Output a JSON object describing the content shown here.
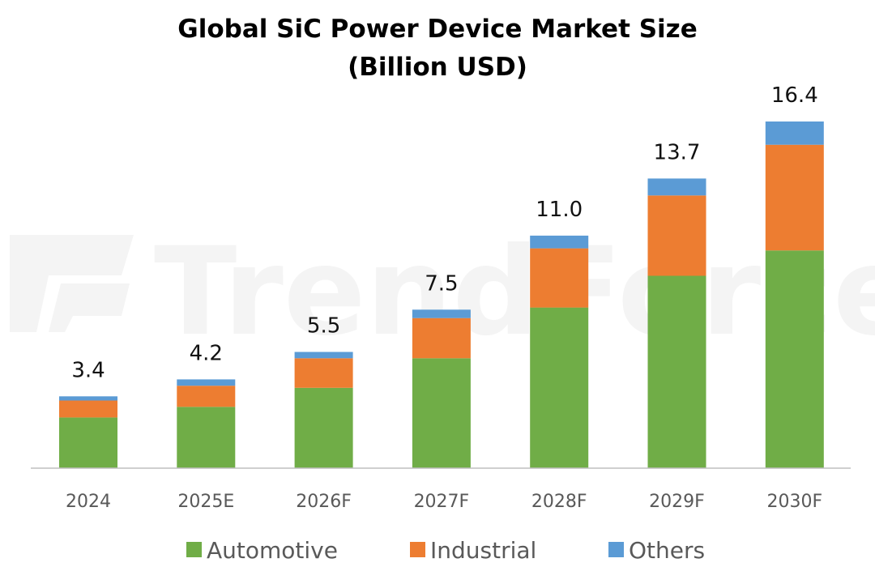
{
  "chart_data": {
    "type": "bar",
    "stacked": true,
    "title": [
      "Global SiC Power Device Market Size",
      "(Billion USD)"
    ],
    "watermark": "TrendForce",
    "categories": [
      "2024",
      "2025E",
      "2026F",
      "2027F",
      "2028F",
      "2029F",
      "2030F"
    ],
    "series": [
      {
        "name": "Automotive",
        "color": "#70ad47",
        "values": [
          2.4,
          2.9,
          3.8,
          5.2,
          7.6,
          9.1,
          10.3
        ]
      },
      {
        "name": "Industrial",
        "color": "#ed7d31",
        "values": [
          0.8,
          1.0,
          1.4,
          1.9,
          2.8,
          3.8,
          5.0
        ]
      },
      {
        "name": "Others",
        "color": "#5b9bd5",
        "values": [
          0.2,
          0.3,
          0.3,
          0.4,
          0.6,
          0.8,
          1.1
        ]
      }
    ],
    "totals": [
      "3.4",
      "4.2",
      "5.5",
      "7.5",
      "11.0",
      "13.7",
      "16.4"
    ],
    "ylim": [
      0,
      16.4
    ],
    "xlabel": "",
    "ylabel": "",
    "grid": false,
    "legend_position": "bottom"
  }
}
